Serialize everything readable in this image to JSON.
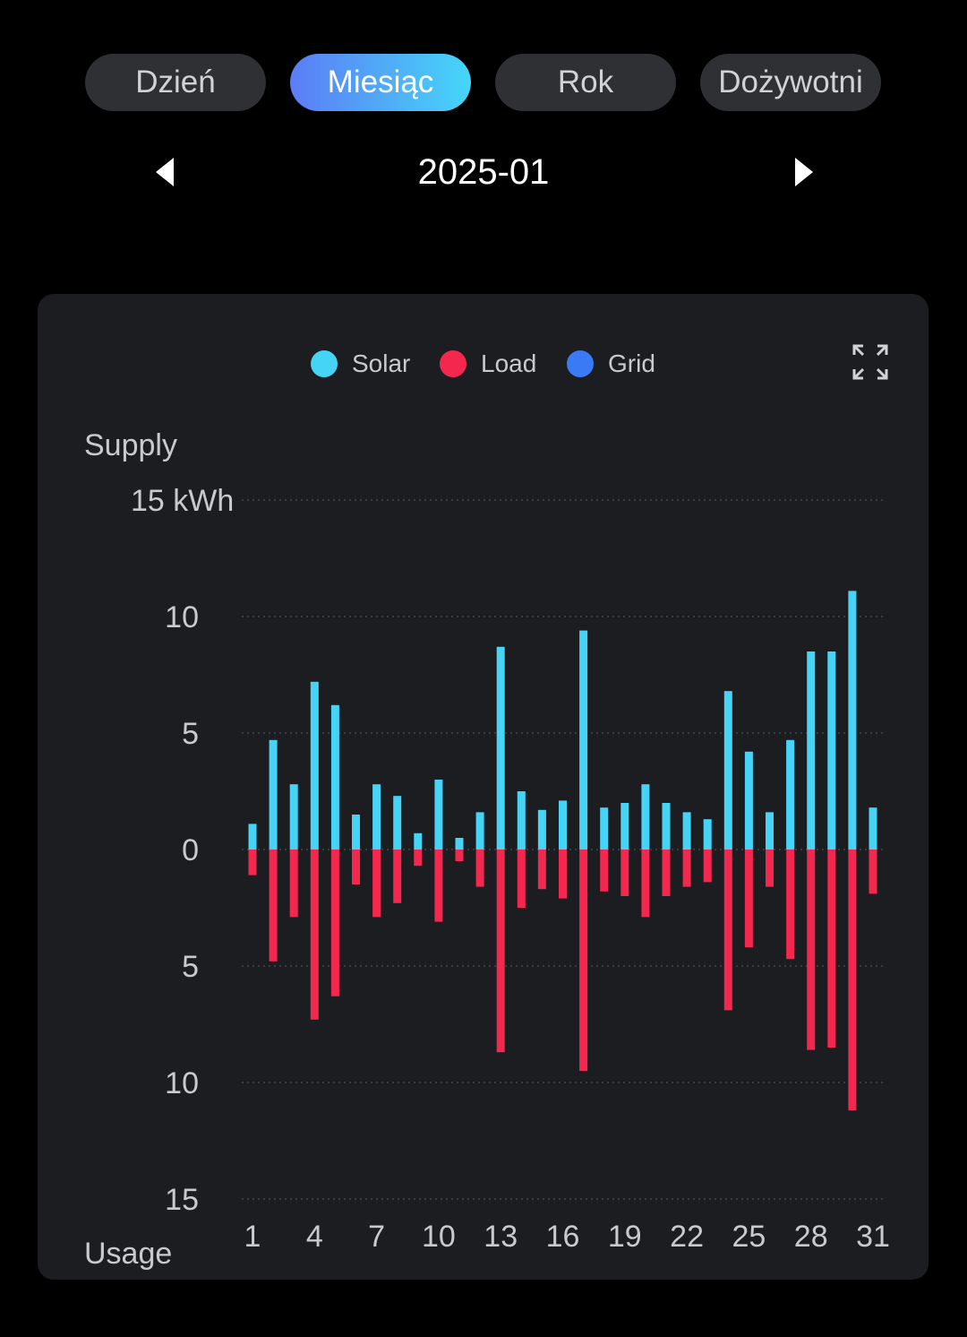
{
  "tabs": [
    {
      "label": "Dzień"
    },
    {
      "label": "Miesiąc",
      "active": true
    },
    {
      "label": "Rok"
    },
    {
      "label": "Dożywotni"
    }
  ],
  "period": "2025-01",
  "legend": [
    {
      "label": "Solar",
      "color": "#46d4f6"
    },
    {
      "label": "Load",
      "color": "#f4274f"
    },
    {
      "label": "Grid",
      "color": "#3a7af5"
    }
  ],
  "chart_data": {
    "type": "bar",
    "title": "",
    "ylabel_top": "Supply",
    "ylabel_bottom": "Usage",
    "unit": "kWh",
    "ylim": [
      -15,
      15
    ],
    "y_ticks": [
      {
        "v": 15,
        "label": "15 kWh"
      },
      {
        "v": 10,
        "label": "10"
      },
      {
        "v": 5,
        "label": "5"
      },
      {
        "v": 0,
        "label": "0"
      },
      {
        "v": -5,
        "label": "5"
      },
      {
        "v": -10,
        "label": "10"
      },
      {
        "v": -15,
        "label": "15"
      }
    ],
    "x_ticks": [
      "1",
      "4",
      "7",
      "10",
      "13",
      "16",
      "19",
      "22",
      "25",
      "28",
      "31"
    ],
    "categories": [
      1,
      2,
      3,
      4,
      5,
      6,
      7,
      8,
      9,
      10,
      11,
      12,
      13,
      14,
      15,
      16,
      17,
      18,
      19,
      20,
      21,
      22,
      23,
      24,
      25,
      26,
      27,
      28,
      29,
      30,
      31
    ],
    "series": [
      {
        "name": "Solar",
        "color": "#46d4f6",
        "values": [
          1.1,
          4.7,
          2.8,
          7.2,
          6.2,
          1.5,
          2.8,
          2.3,
          0.7,
          3.0,
          0.5,
          1.6,
          8.7,
          2.5,
          1.7,
          2.1,
          9.4,
          1.8,
          2.0,
          2.8,
          2.0,
          1.6,
          1.3,
          6.8,
          4.2,
          1.6,
          4.7,
          8.5,
          8.5,
          11.1,
          1.8
        ]
      },
      {
        "name": "Load",
        "color": "#f4274f",
        "values": [
          -1.1,
          -4.8,
          -2.9,
          -7.3,
          -6.3,
          -1.5,
          -2.9,
          -2.3,
          -0.7,
          -3.1,
          -0.5,
          -1.6,
          -8.7,
          -2.5,
          -1.7,
          -2.1,
          -9.5,
          -1.8,
          -2.0,
          -2.9,
          -2.0,
          -1.6,
          -1.4,
          -6.9,
          -4.2,
          -1.6,
          -4.7,
          -8.6,
          -8.5,
          -11.2,
          -1.9
        ]
      },
      {
        "name": "Grid",
        "color": "#3a7af5",
        "values": [
          0,
          0,
          0,
          0,
          0,
          0,
          0,
          0,
          0,
          0,
          0,
          0,
          0,
          0,
          0,
          0,
          0,
          0,
          0,
          0,
          0,
          0,
          0,
          0,
          0,
          0,
          0,
          0,
          0,
          0,
          0
        ]
      }
    ],
    "grid": true,
    "legend_position": "top-center"
  }
}
